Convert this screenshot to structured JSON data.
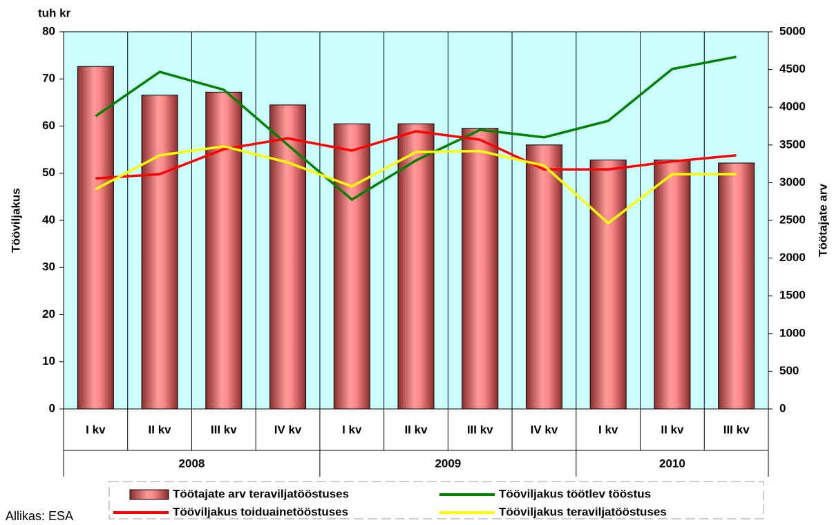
{
  "chart_data": {
    "type": "bar-line",
    "y_unit_label": "tuh kr",
    "ylabel": "Tööviljakus",
    "y2label": "Töötajate arv",
    "source": "Allikas: ESA",
    "groups": [
      {
        "name": "2008",
        "categories": [
          "I kv",
          "II kv",
          "III kv",
          "IV kv"
        ]
      },
      {
        "name": "2009",
        "categories": [
          "I kv",
          "II kv",
          "III kv",
          "IV kv"
        ]
      },
      {
        "name": "2010",
        "categories": [
          "I kv",
          "II kv",
          "III kv"
        ]
      }
    ],
    "ylim": [
      0,
      80
    ],
    "yticks": [
      0,
      10,
      20,
      30,
      40,
      50,
      60,
      70,
      80
    ],
    "y2lim": [
      0,
      5000
    ],
    "y2ticks": [
      0,
      500,
      1000,
      1500,
      2000,
      2500,
      3000,
      3500,
      4000,
      4500,
      5000
    ],
    "plot_background": "#ccffff",
    "series": [
      {
        "name": "Töötajate arv teraviljatööstuses",
        "type": "bar",
        "axis": "y2",
        "color": "#ff8080",
        "values": [
          4540,
          4160,
          4200,
          4030,
          3780,
          3780,
          3720,
          3500,
          3300,
          3300,
          3260
        ]
      },
      {
        "name": "Tööviljakus töötlev tööstus",
        "type": "line",
        "color": "#008000",
        "values": [
          62.1,
          71.5,
          67.7,
          56.0,
          44.4,
          52.7,
          59.2,
          57.6,
          61.1,
          72.1,
          74.7
        ]
      },
      {
        "name": "Tööviljakus toiduainetööstuses",
        "type": "line",
        "color": "#ff0000",
        "values": [
          48.9,
          49.8,
          55.1,
          57.4,
          54.8,
          58.9,
          57.1,
          50.8,
          50.8,
          52.5,
          53.8
        ]
      },
      {
        "name": "Tööviljakus teraviljatööstuses",
        "type": "line",
        "color": "#ffff00",
        "values": [
          46.6,
          53.8,
          55.7,
          52.3,
          47.2,
          54.5,
          54.7,
          51.6,
          39.4,
          49.8,
          49.8
        ]
      }
    ]
  }
}
